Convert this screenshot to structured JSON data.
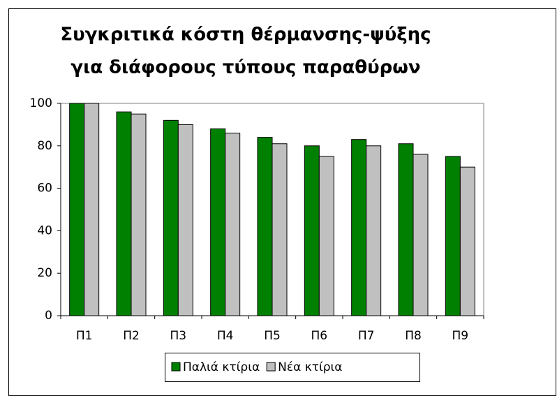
{
  "chart_data": {
    "type": "bar",
    "title": [
      "Συγκριτικά κόστη θέρμανσης-ψύξης",
      "για διάφορους τύπους παραθύρων"
    ],
    "categories": [
      "Π1",
      "Π2",
      "Π3",
      "Π4",
      "Π5",
      "Π6",
      "Π7",
      "Π8",
      "Π9"
    ],
    "series": [
      {
        "name": "Παλιά κτίρια",
        "color": "#008000",
        "values": [
          100,
          96,
          92,
          88,
          84,
          80,
          83,
          81,
          75
        ]
      },
      {
        "name": "Νέα κτίρια",
        "color": "#c0c0c0",
        "values": [
          100,
          95,
          90,
          86,
          81,
          75,
          80,
          76,
          70
        ]
      }
    ],
    "ylim": [
      0,
      100
    ],
    "yticks": [
      0,
      20,
      40,
      60,
      80,
      100
    ],
    "grid": false,
    "legend": "bottom"
  }
}
